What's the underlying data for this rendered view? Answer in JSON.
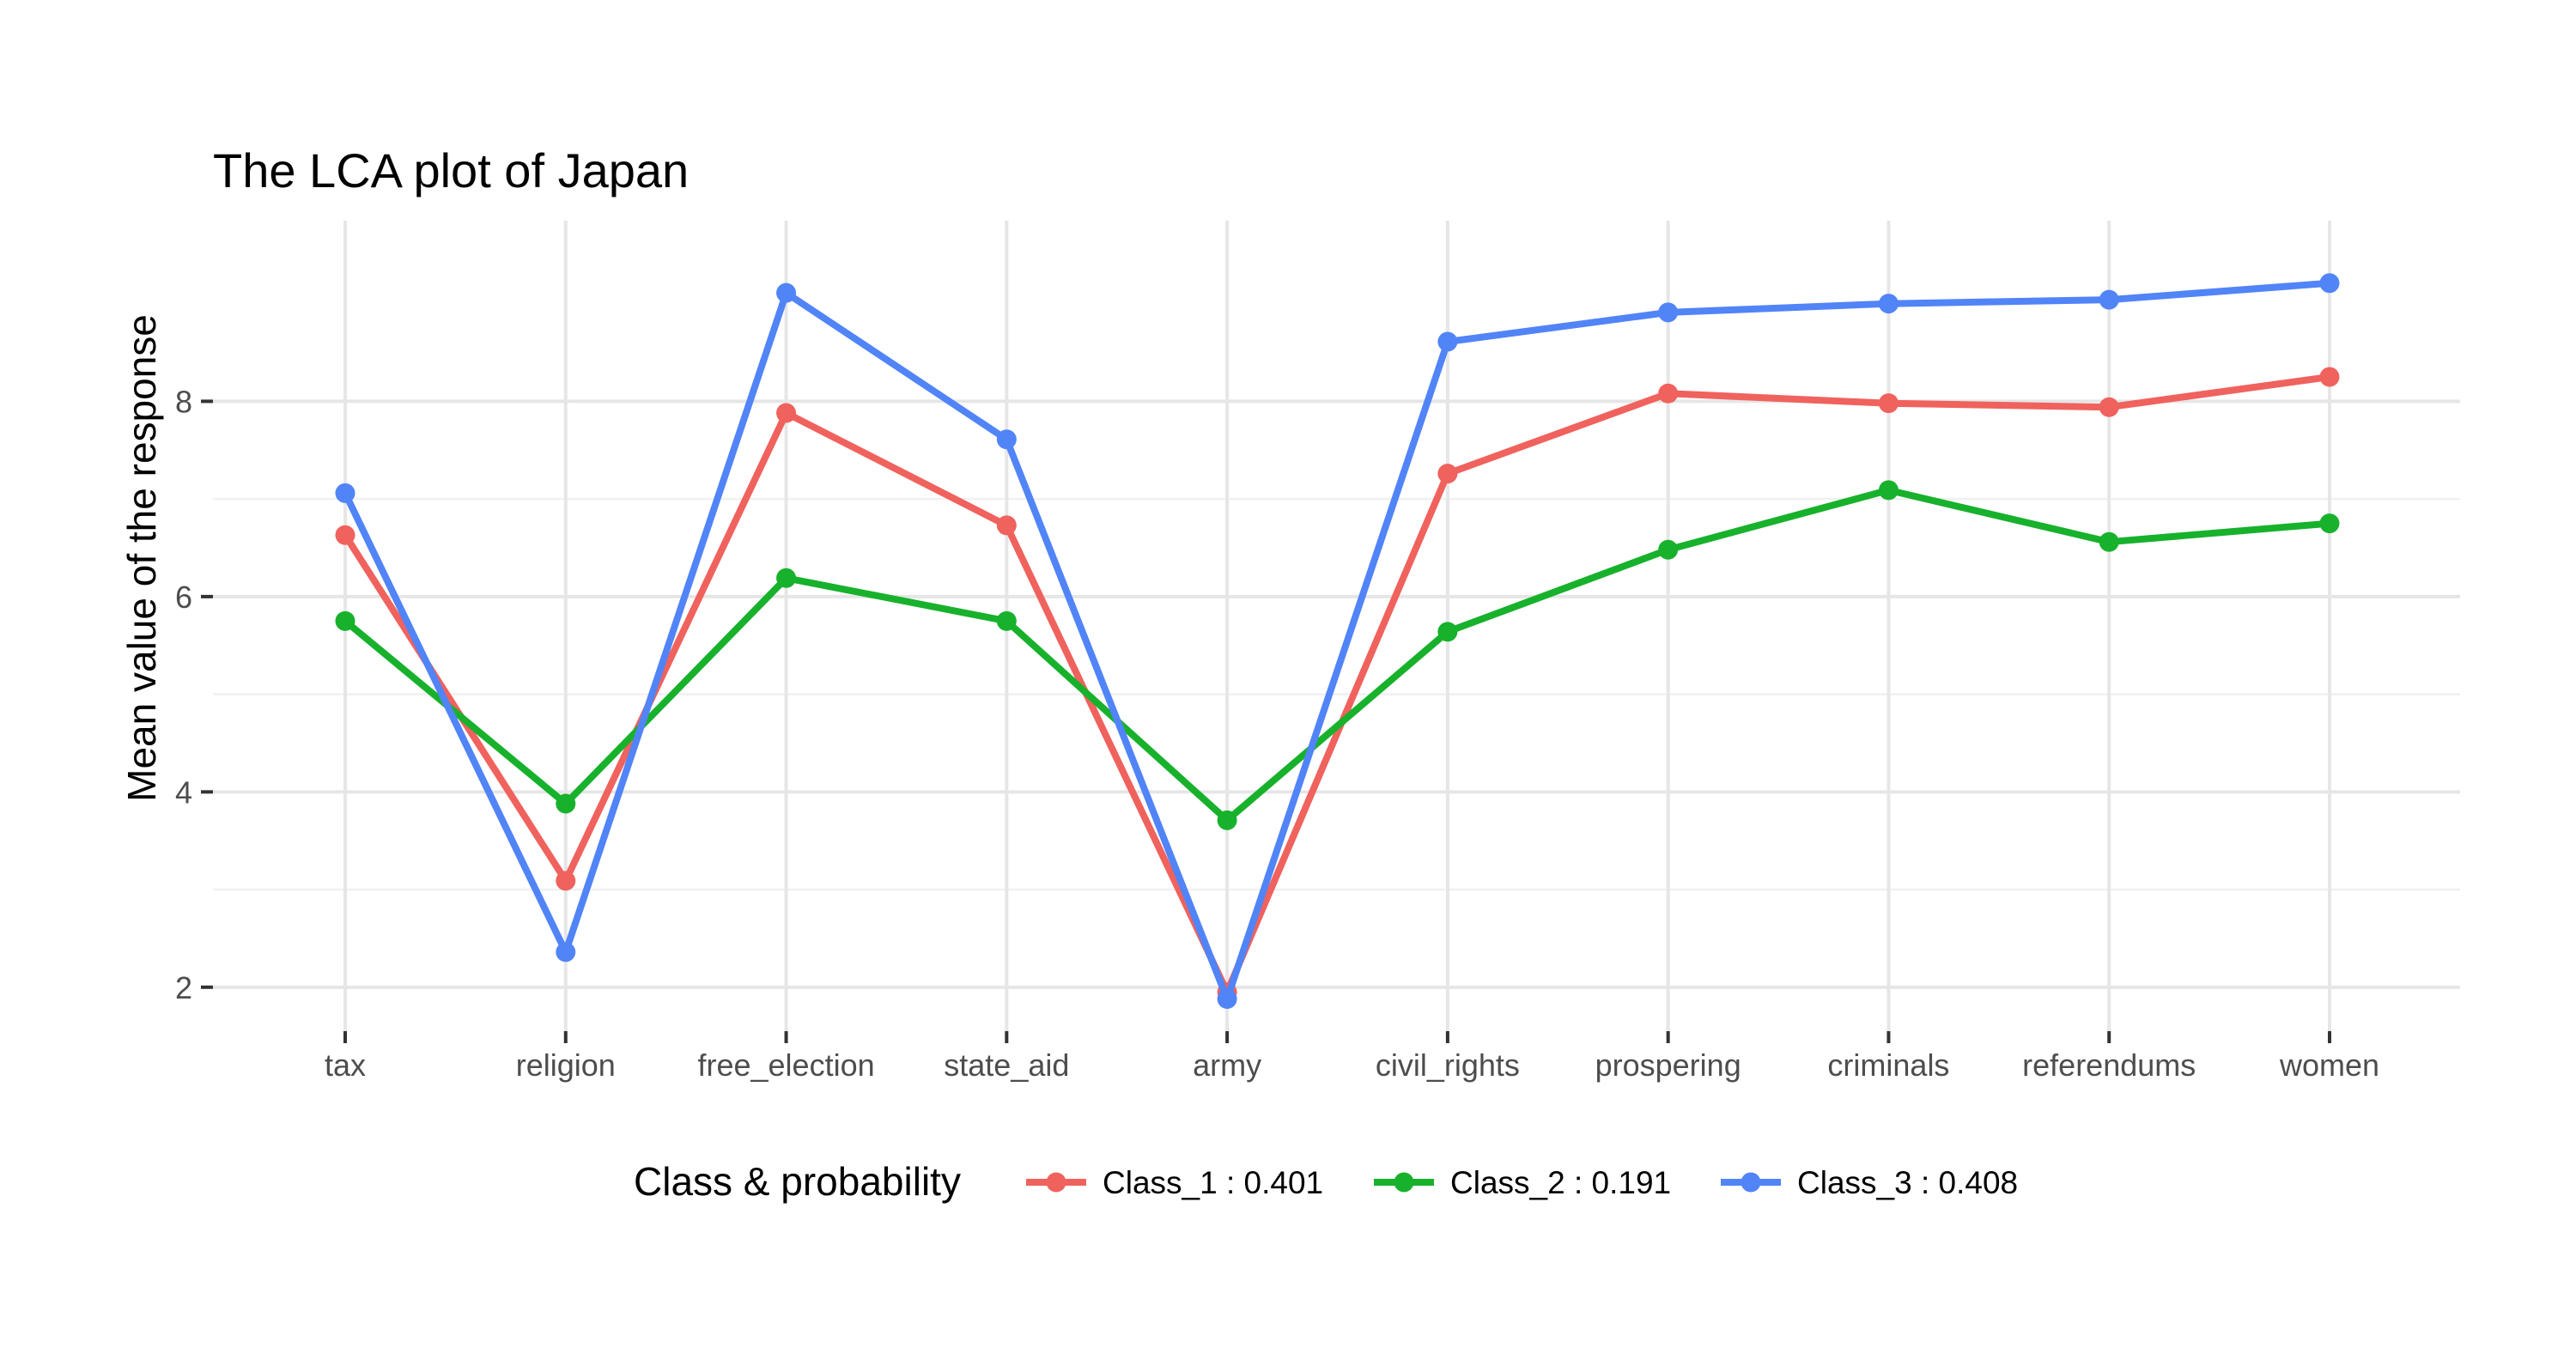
{
  "chart_data": {
    "type": "line",
    "title": "The LCA plot of Japan",
    "xlabel": "",
    "ylabel": "Mean value of the response",
    "categories": [
      "tax",
      "religion",
      "free_election",
      "state_aid",
      "army",
      "civil_rights",
      "prospering",
      "criminals",
      "referendums",
      "women"
    ],
    "yticks": [
      2,
      4,
      6,
      8
    ],
    "ylim": [
      1.55,
      9.85
    ],
    "grid": true,
    "legend": {
      "title": "Class & probability",
      "position": "bottom"
    },
    "series": [
      {
        "name": "Class_1 : 0.401",
        "color": "#f0625d",
        "values": [
          6.63,
          3.09,
          7.88,
          6.73,
          1.95,
          7.26,
          8.08,
          7.98,
          7.94,
          8.25
        ]
      },
      {
        "name": "Class_2 : 0.191",
        "color": "#18b12c",
        "values": [
          5.75,
          3.88,
          6.19,
          5.75,
          3.71,
          5.64,
          6.48,
          7.09,
          6.56,
          6.75
        ]
      },
      {
        "name": "Class_3 : 0.408",
        "color": "#5184f7",
        "values": [
          7.06,
          2.36,
          9.11,
          7.61,
          1.88,
          8.61,
          8.91,
          9.0,
          9.04,
          9.21
        ]
      }
    ]
  }
}
